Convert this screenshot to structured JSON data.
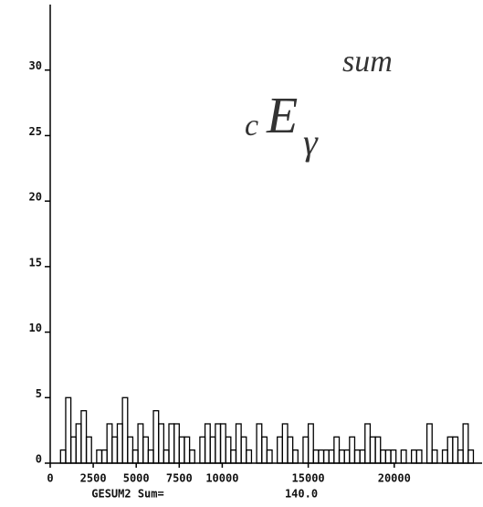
{
  "chart_data": {
    "type": "histogram",
    "bins": [
      600,
      900,
      1200,
      1500,
      1800,
      2100,
      2400,
      2700,
      3000,
      3300,
      3600,
      3900,
      4200,
      4500,
      4800,
      5100,
      5400,
      5700,
      6000,
      6300,
      6600,
      6900,
      7200,
      7500,
      7800,
      8100,
      8400,
      8700,
      9000,
      9300,
      9600,
      9900,
      10200,
      10500,
      10800,
      11100,
      11400,
      11700,
      12000,
      12300,
      12600,
      12900,
      13200,
      13500,
      13800,
      14100,
      14400,
      14700,
      15000,
      15300,
      15600,
      15900,
      16200,
      16500,
      16800,
      17100,
      17400,
      17700,
      18000,
      18300,
      18600,
      18900,
      19200,
      19500,
      19800,
      20100,
      20400,
      20700,
      21000,
      21300,
      21600,
      21900,
      22200,
      22500,
      22800,
      23100,
      23400,
      23700,
      24000,
      24300,
      24600
    ],
    "values": [
      1,
      5,
      2,
      3,
      4,
      2,
      0,
      1,
      1,
      3,
      2,
      3,
      5,
      2,
      1,
      3,
      2,
      1,
      4,
      3,
      1,
      3,
      3,
      2,
      2,
      1,
      0,
      2,
      3,
      2,
      3,
      3,
      2,
      1,
      3,
      2,
      1,
      0,
      3,
      2,
      1,
      0,
      2,
      3,
      2,
      1,
      0,
      2,
      3,
      1,
      1,
      1,
      1,
      2,
      1,
      1,
      2,
      1,
      1,
      3,
      2,
      2,
      1,
      1,
      1,
      0,
      1,
      0,
      1,
      1,
      0,
      3,
      1,
      0,
      1,
      2,
      2,
      1,
      3,
      1
    ],
    "color": "#000000",
    "xlim": [
      0,
      25000
    ],
    "xticks": [
      0,
      2500,
      5000,
      7500,
      10000,
      15000,
      20000
    ],
    "ylim": [
      0,
      35
    ],
    "yticks": [
      0,
      5,
      10,
      15,
      20,
      25,
      30
    ],
    "x_label": "GESUM2 Sum=",
    "sum_value": "140.0",
    "annotation": {
      "prefix": "c",
      "symbol": "E",
      "subscript": "γ",
      "superscript": "sum"
    }
  }
}
